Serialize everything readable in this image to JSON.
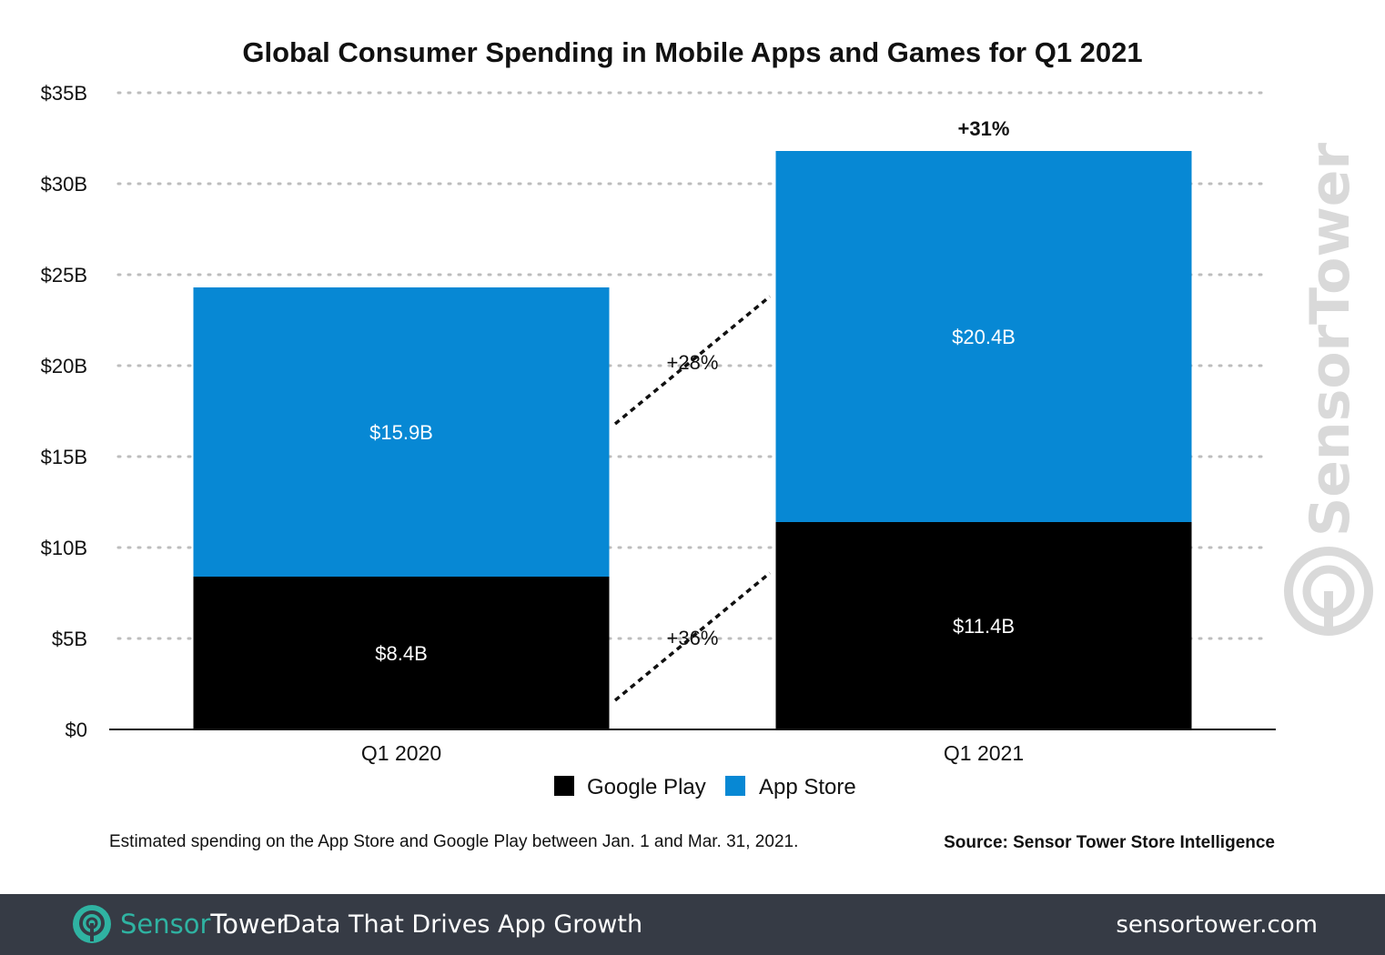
{
  "chart_data": {
    "type": "bar",
    "stacked": true,
    "title": "Global Consumer Spending in Mobile Apps and Games for Q1 2021",
    "categories": [
      "Q1 2020",
      "Q1 2021"
    ],
    "series": [
      {
        "name": "Google Play",
        "values": [
          8.4,
          11.4
        ],
        "labels": [
          "$8.4B",
          "$11.4B"
        ],
        "color": "#000000"
      },
      {
        "name": "App Store",
        "values": [
          15.9,
          20.4
        ],
        "labels": [
          "$15.9B",
          "$20.4B"
        ],
        "color": "#0788d4"
      }
    ],
    "ylim": [
      0,
      35
    ],
    "yticks": [
      "$0",
      "$5B",
      "$10B",
      "$15B",
      "$20B",
      "$25B",
      "$30B",
      "$35B"
    ],
    "grid": true,
    "legend": "bottom",
    "annotations": {
      "google_play_growth": "+36%",
      "app_store_growth": "+28%",
      "total_growth": "+31%"
    }
  },
  "note": "Estimated spending on the App Store and Google Play between Jan. 1 and Mar. 31, 2021.",
  "source": "Source: Sensor Tower Store Intelligence",
  "watermark": "SensorTower",
  "footer": {
    "brand_part1": "Sensor",
    "brand_part2": "Tower",
    "tagline": "Data That Drives App Growth",
    "url": "sensortower.com",
    "brand_color": "#2fb3a2",
    "background": "#363b45"
  }
}
